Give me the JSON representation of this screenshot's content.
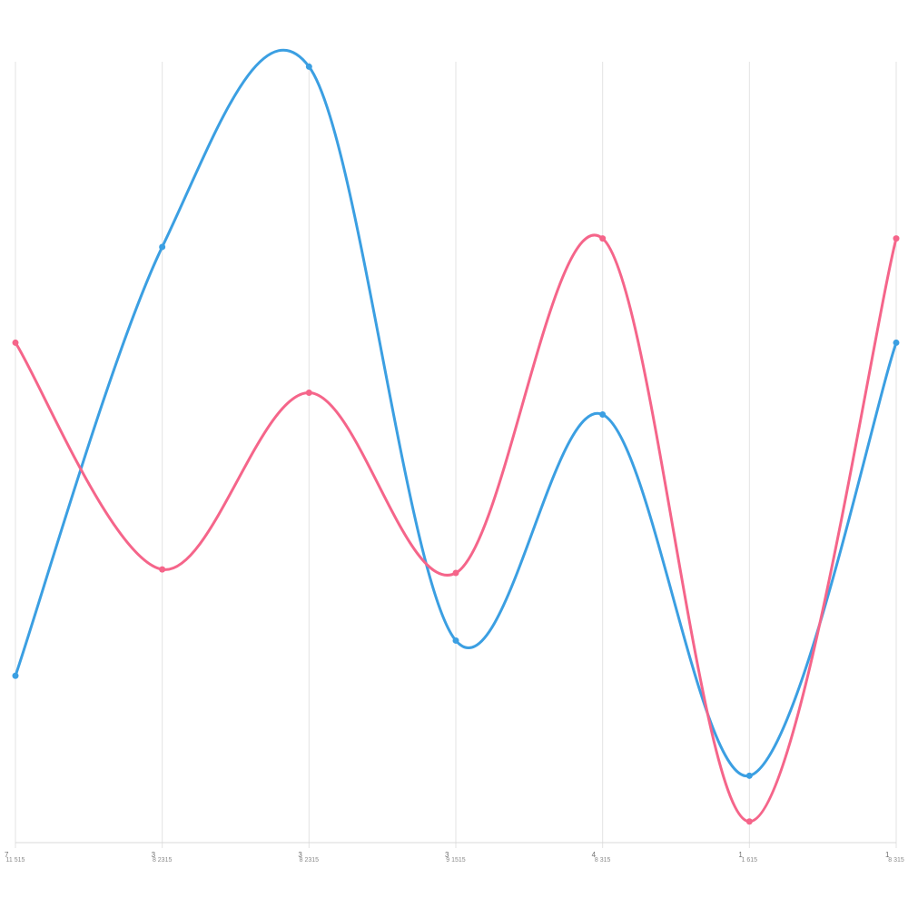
{
  "chart_data": {
    "type": "line",
    "title": "",
    "xlabel": "",
    "ylabel": "",
    "categories": [
      {
        "label": "7",
        "sub": "11 515"
      },
      {
        "label": "3",
        "sub": "8 2315"
      },
      {
        "label": "3",
        "sub": "8 2315"
      },
      {
        "label": "3",
        "sub": "9 1515"
      },
      {
        "label": "4",
        "sub": "8 315"
      },
      {
        "label": "1",
        "sub": "1 615"
      },
      {
        "label": "1",
        "sub": "8 315"
      }
    ],
    "series": [
      {
        "color": "#3b9fe2",
        "values": [
          14.7,
          75.6,
          101.2,
          19.7,
          51.8,
          0.5,
          62.0
        ]
      },
      {
        "color": "#f5658a",
        "values": [
          62.0,
          29.8,
          54.9,
          29.3,
          76.8,
          -6.0,
          76.8
        ]
      }
    ],
    "ylim": [
      -9,
      101.9
    ],
    "grid": "vertical",
    "legend": "none",
    "smooth": true
  }
}
